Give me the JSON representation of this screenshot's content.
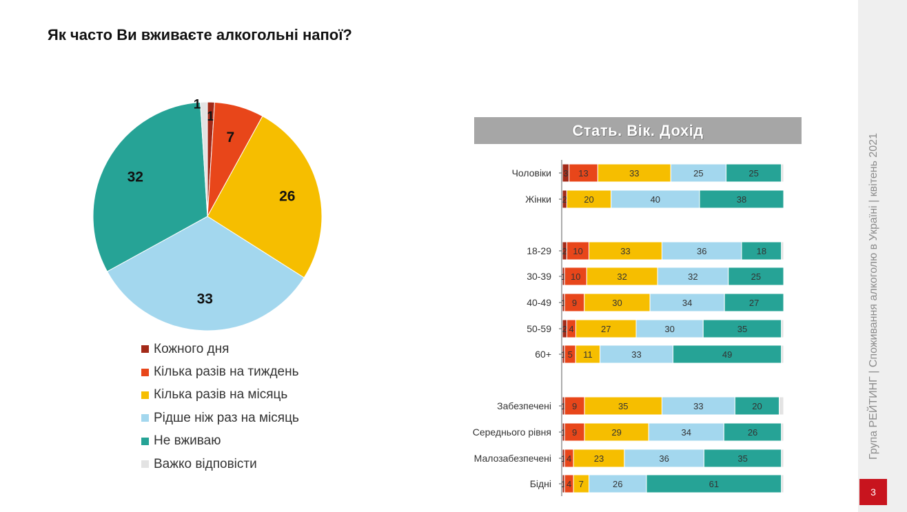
{
  "title": "Як часто Ви вживаєте алкогольні напої?",
  "panel_title": "Стать. Вік. Дохід",
  "sidebar_text": "Група РЕЙТИНГ | Споживання алкоголю в Україні | квітень 2021",
  "page_number": "3",
  "colors": {
    "daily": "#a32a18",
    "weekly": "#e8461a",
    "monthly": "#f6be00",
    "rarely": "#a3d7ee",
    "never": "#26a396",
    "dk": "#e3e3e3"
  },
  "chart_data": [
    {
      "type": "pie",
      "title": "",
      "categories": [
        "Кожного дня",
        "Кілька разів на тиждень",
        "Кілька разів на місяць",
        "Рідше ніж раз на місяць",
        "Не вживаю",
        "Важко відповісти"
      ],
      "values": [
        1,
        7,
        26,
        33,
        32,
        1
      ],
      "labels": [
        "1",
        "7",
        "26",
        "33",
        "32",
        "1"
      ],
      "legend": "bottom"
    },
    {
      "type": "bar",
      "orientation": "horizontal",
      "stacked": true,
      "title": "Стать. Вік. Дохід",
      "groups": [
        {
          "name": "Стать",
          "categories": [
            "Чоловіки",
            "Жінки"
          ]
        },
        {
          "name": "Вік",
          "categories": [
            "18-29",
            "30-39",
            "40-49",
            "50-59",
            "60+"
          ]
        },
        {
          "name": "Дохід",
          "categories": [
            "Забезпечені",
            "Середнього рівня",
            "Малозабезпечені",
            "Бідні"
          ]
        }
      ],
      "series": [
        {
          "name": "Кожного дня",
          "values": [
            3,
            2,
            2,
            1,
            1,
            2,
            1,
            1,
            1,
            1,
            1
          ]
        },
        {
          "name": "Кілька разів на тиждень",
          "values": [
            13,
            0,
            10,
            10,
            9,
            4,
            5,
            9,
            9,
            4,
            4
          ]
        },
        {
          "name": "Кілька разів на місяць",
          "values": [
            33,
            20,
            33,
            32,
            30,
            27,
            11,
            35,
            29,
            23,
            7
          ]
        },
        {
          "name": "Рідше ніж раз на місяць",
          "values": [
            25,
            40,
            36,
            32,
            34,
            30,
            33,
            33,
            34,
            36,
            26
          ]
        },
        {
          "name": "Не вживаю",
          "values": [
            25,
            38,
            18,
            25,
            27,
            35,
            49,
            20,
            26,
            35,
            61
          ]
        },
        {
          "name": "Важко відповісти",
          "values": [
            1,
            0,
            1,
            0,
            0,
            1,
            1,
            2,
            1,
            1,
            1
          ]
        }
      ],
      "shown_labels": [
        [
          "3",
          "13",
          "33",
          "25",
          "25"
        ],
        [
          "2",
          "20",
          "40",
          "38"
        ],
        [
          "2",
          "10",
          "33",
          "36",
          "18"
        ],
        [
          "1",
          "10",
          "32",
          "32",
          "25"
        ],
        [
          "1",
          "9",
          "30",
          "34",
          "27"
        ],
        [
          "2",
          "4",
          "27",
          "30",
          "35"
        ],
        [
          "1",
          "5",
          "11",
          "33",
          "49"
        ],
        [
          "1",
          "9",
          "35",
          "33",
          "20"
        ],
        [
          "1",
          "9",
          "29",
          "34",
          "26"
        ],
        [
          "1",
          "4",
          "23",
          "36",
          "35"
        ],
        [
          "1",
          "4",
          "7",
          "26",
          "61"
        ]
      ],
      "xlim": [
        0,
        100
      ]
    }
  ]
}
